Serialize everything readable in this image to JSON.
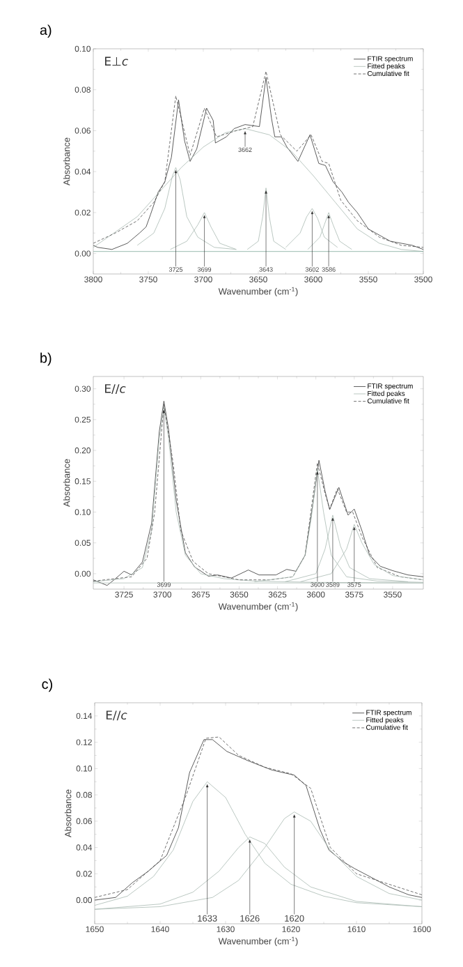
{
  "chart_data": [
    {
      "type": "line",
      "title": "a)",
      "xlabel": "Wavenumber (cm$^{-1}$)",
      "ylabel": "Absorbance",
      "marker": "none",
      "legend": "top right",
      "xlim": [
        3800,
        3500
      ],
      "ylim": [
        -0.01,
        0.1
      ],
      "xticks": [
        3800,
        3750,
        3700,
        3650,
        3600,
        3550,
        3500
      ],
      "yticks": [
        {
          "value": 0,
          "label": "0.00"
        },
        {
          "value": 0.02,
          "label": "0.02"
        },
        {
          "value": 0.04,
          "label": "0.04"
        },
        {
          "value": 0.06,
          "label": "0.06"
        },
        {
          "value": 0.08,
          "label": "0.08"
        },
        {
          "value": 0.1,
          "label": "0.10"
        }
      ],
      "annotations": [
        "E⊥*c*",
        {
          "text": "3725",
          "x": 3725,
          "y": 0.042
        },
        {
          "text": "3699",
          "x": 3699,
          "y": 0.02
        },
        {
          "text": "3662",
          "x": 3662,
          "y": 0.061
        },
        {
          "text": "3643",
          "x": 3643,
          "y": 0.032
        },
        {
          "text": "3602",
          "x": 3601,
          "y": 0.022
        },
        {
          "text": "3586",
          "x": 3586,
          "y": 0.02
        }
      ],
      "series": [
        {
          "name": "FTIR spectrum",
          "color": "#333333",
          "line_style": "solid",
          "x": [
            3800,
            3796,
            3783,
            3769,
            3758,
            3752,
            3748,
            3741,
            3735,
            3729,
            3722.5,
            3717,
            3712,
            3706,
            3697,
            3691,
            3689,
            3679,
            3672,
            3662,
            3649,
            3643,
            3638,
            3635,
            3629,
            3624,
            3614,
            3603,
            3595,
            3589,
            3582,
            3574,
            3568,
            3560,
            3550,
            3530,
            3510,
            3500
          ],
          "values": [
            0.004,
            0.003,
            0.002,
            0.005,
            0.01,
            0.013,
            0.019,
            0.03,
            0.035,
            0.047,
            0.075,
            0.055,
            0.045,
            0.051,
            0.071,
            0.065,
            0.054,
            0.057,
            0.061,
            0.063,
            0.062,
            0.086,
            0.066,
            0.057,
            0.057,
            0.052,
            0.045,
            0.058,
            0.044,
            0.043,
            0.035,
            0.03,
            0.025,
            0.02,
            0.012,
            0.006,
            0.004,
            0.002
          ]
        },
        {
          "name": "Fitted peaks",
          "color": "#a9bab2",
          "line_style": "solid",
          "x": [
            3800,
            3760,
            3740,
            3720,
            3700,
            3680,
            3662,
            3640,
            3620,
            3600,
            3580,
            3560,
            3540,
            3520,
            3500
          ],
          "values": [
            0.003,
            0.018,
            0.03,
            0.042,
            0.052,
            0.059,
            0.061,
            0.058,
            0.05,
            0.038,
            0.025,
            0.012,
            0.005,
            0.002,
            0.001
          ]
        },
        {
          "name": "Cumulative fit",
          "color": "#4d4d4d",
          "line_style": "dashed",
          "x": [
            3800,
            3780,
            3760,
            3745,
            3735,
            3725,
            3712,
            3699,
            3688,
            3670,
            3655,
            3643,
            3630,
            3615,
            3602,
            3592,
            3586,
            3575,
            3560,
            3540,
            3520,
            3500
          ],
          "values": [
            0.005,
            0.01,
            0.016,
            0.025,
            0.035,
            0.077,
            0.048,
            0.071,
            0.057,
            0.06,
            0.062,
            0.089,
            0.058,
            0.05,
            0.058,
            0.045,
            0.044,
            0.026,
            0.016,
            0.008,
            0.004,
            0.003
          ]
        },
        {
          "color": "#a9bab2",
          "line_style": "solid",
          "x": [
            3760,
            3745,
            3735,
            3728,
            3725,
            3721,
            3715,
            3705,
            3690,
            3670
          ],
          "values": [
            0.004,
            0.01,
            0.022,
            0.038,
            0.042,
            0.036,
            0.018,
            0.008,
            0.003,
            0.002
          ]
        },
        {
          "color": "#a9bab2",
          "line_style": "solid",
          "x": [
            3730,
            3715,
            3705,
            3699,
            3693,
            3685,
            3670
          ],
          "values": [
            0.002,
            0.006,
            0.014,
            0.02,
            0.013,
            0.005,
            0.002
          ]
        },
        {
          "color": "#a9bab2",
          "line_style": "solid",
          "x": [
            3660,
            3650,
            3646,
            3643,
            3640,
            3636,
            3625
          ],
          "values": [
            0.002,
            0.006,
            0.018,
            0.032,
            0.018,
            0.006,
            0.002
          ]
        },
        {
          "color": "#a9bab2",
          "line_style": "solid",
          "x": [
            3625,
            3612,
            3606,
            3601,
            3596,
            3590,
            3578
          ],
          "values": [
            0.003,
            0.01,
            0.018,
            0.022,
            0.017,
            0.008,
            0.003
          ]
        },
        {
          "color": "#a9bab2",
          "line_style": "solid",
          "x": [
            3605,
            3594,
            3590,
            3586,
            3582,
            3576,
            3565
          ],
          "values": [
            0.002,
            0.008,
            0.014,
            0.02,
            0.014,
            0.006,
            0.002
          ]
        },
        {
          "color": "#7fa89a",
          "line_style": "solid",
          "x": [
            3800,
            3500
          ],
          "values": [
            0.001,
            0.001
          ]
        }
      ]
    },
    {
      "type": "line",
      "title": "b)",
      "xlabel": "Wavenumber (cm$^{-1}$)",
      "ylabel": "Absorbance",
      "marker": "none",
      "legend": "top right",
      "xlim": [
        3745,
        3530
      ],
      "ylim": [
        -0.025,
        0.32
      ],
      "xticks": [
        3725,
        3700,
        3675,
        3650,
        3625,
        3600,
        3575,
        3550
      ],
      "yticks": [
        {
          "value": 0,
          "label": "0.00"
        },
        {
          "value": 0.05,
          "label": "0.05"
        },
        {
          "value": 0.1,
          "label": "0.10"
        },
        {
          "value": 0.15,
          "label": "0.15"
        },
        {
          "value": 0.2,
          "label": "0.20"
        },
        {
          "value": 0.25,
          "label": "0.25"
        },
        {
          "value": 0.3,
          "label": "0.30"
        }
      ],
      "annotations": [
        "E//*c*",
        {
          "text": "3699",
          "x": 3699,
          "y": 0.27
        },
        {
          "text": "3600",
          "x": 3599,
          "y": 0.17
        },
        {
          "text": "3589",
          "x": 3589,
          "y": 0.095
        },
        {
          "text": "3575",
          "x": 3575,
          "y": 0.08
        }
      ],
      "series": [
        {
          "name": "FTIR spectrum",
          "color": "#333333",
          "line_style": "solid",
          "x": [
            3745,
            3736,
            3731,
            3725,
            3720,
            3713,
            3707,
            3702,
            3699,
            3696,
            3691,
            3685,
            3679,
            3670,
            3664,
            3655,
            3644,
            3637,
            3626,
            3619,
            3613,
            3607,
            3602,
            3598,
            3594,
            3591,
            3585,
            3579,
            3575,
            3570,
            3565,
            3558,
            3550,
            3540,
            3530
          ],
          "values": [
            -0.01,
            -0.019,
            -0.009,
            0.004,
            -0.002,
            0.019,
            0.082,
            0.231,
            0.28,
            0.235,
            0.119,
            0.034,
            0.011,
            -0.004,
            -0.002,
            -0.007,
            0.006,
            -0.002,
            -0.002,
            0.007,
            0.004,
            0.03,
            0.112,
            0.184,
            0.134,
            0.104,
            0.14,
            0.095,
            0.105,
            0.07,
            0.03,
            0.012,
            0.005,
            -0.002,
            -0.005
          ]
        },
        {
          "name": "Fitted peaks",
          "color": "#a9bab2",
          "line_style": "solid",
          "x": [
            3745,
            3725,
            3713,
            3707,
            3702,
            3699,
            3696,
            3691,
            3685,
            3675,
            3660,
            3640,
            3600,
            3530
          ],
          "values": [
            -0.013,
            -0.008,
            0.01,
            0.07,
            0.22,
            0.27,
            0.22,
            0.1,
            0.03,
            0,
            -0.008,
            -0.012,
            -0.014,
            -0.015
          ]
        },
        {
          "name": "Cumulative fit",
          "color": "#4d4d4d",
          "line_style": "dashed",
          "x": [
            3745,
            3720,
            3710,
            3705,
            3699,
            3693,
            3688,
            3680,
            3670,
            3650,
            3630,
            3615,
            3607,
            3599,
            3594,
            3591,
            3586,
            3580,
            3576,
            3570,
            3560,
            3545,
            3530
          ],
          "values": [
            -0.012,
            -0.005,
            0.025,
            0.1,
            0.275,
            0.18,
            0.07,
            0.02,
            0,
            -0.01,
            -0.01,
            -0.005,
            0.03,
            0.18,
            0.13,
            0.105,
            0.138,
            0.1,
            0.1,
            0.06,
            0.01,
            -0.005,
            -0.01
          ]
        },
        {
          "color": "#a9bab2",
          "line_style": "solid",
          "x": [
            3640,
            3615,
            3607,
            3603,
            3599,
            3595,
            3590,
            3580,
            3560,
            3530
          ],
          "values": [
            -0.013,
            -0.005,
            0.03,
            0.09,
            0.17,
            0.1,
            0.03,
            -0.005,
            -0.012,
            -0.014
          ]
        },
        {
          "color": "#a9bab2",
          "line_style": "solid",
          "x": [
            3620,
            3600,
            3594,
            3589,
            3584,
            3578,
            3565,
            3540
          ],
          "values": [
            -0.013,
            0,
            0.04,
            0.095,
            0.045,
            0.01,
            -0.008,
            -0.013
          ]
        },
        {
          "color": "#a9bab2",
          "line_style": "solid",
          "x": [
            3610,
            3590,
            3580,
            3575,
            3570,
            3562,
            3550,
            3530
          ],
          "values": [
            -0.013,
            0,
            0.04,
            0.08,
            0.05,
            0.015,
            -0.003,
            -0.01
          ]
        },
        {
          "color": "#a9bab2",
          "line_style": "solid",
          "x": [
            3745,
            3530
          ],
          "values": [
            -0.015,
            -0.015
          ]
        }
      ]
    },
    {
      "type": "line",
      "title": "c)",
      "xlabel": "Wavenumber (cm$^{-1}$)",
      "ylabel": "Absorbance",
      "marker": "none",
      "legend": "top right",
      "xlim": [
        1650,
        1600
      ],
      "ylim": [
        -0.018,
        0.15
      ],
      "xticks": [
        1650,
        1640,
        1630,
        1620,
        1610,
        1600
      ],
      "yticks": [
        {
          "value": 0,
          "label": "0.00"
        },
        {
          "value": 0.02,
          "label": "0.02"
        },
        {
          "value": 0.04,
          "label": "0.04"
        },
        {
          "value": 0.06,
          "label": "0.06"
        },
        {
          "value": 0.08,
          "label": "0.08"
        },
        {
          "value": 0.1,
          "label": "0.10"
        },
        {
          "value": 0.12,
          "label": "0.12"
        },
        {
          "value": 0.14,
          "label": "0.14"
        }
      ],
      "annotations": [
        "E//*c*",
        {
          "text": "1633",
          "x": 1632.8,
          "y": 0.09
        },
        {
          "text": "1626",
          "x": 1626.3,
          "y": 0.048
        },
        {
          "text": "1620",
          "x": 1619.5,
          "y": 0.067
        }
      ],
      "series": [
        {
          "name": "FTIR spectrum",
          "color": "#333333",
          "line_style": "solid",
          "x": [
            1650,
            1646.8,
            1644.3,
            1641.8,
            1639,
            1637.2,
            1635.5,
            1633.3,
            1632,
            1629.8,
            1626.6,
            1623,
            1621.3,
            1619.5,
            1617.7,
            1615.6,
            1614.2,
            1612,
            1610.3,
            1608,
            1605,
            1602,
            1600
          ],
          "values": [
            0,
            0.002,
            0.013,
            0.022,
            0.034,
            0.055,
            0.097,
            0.122,
            0.122,
            0.113,
            0.106,
            0.099,
            0.097,
            0.095,
            0.087,
            0.054,
            0.038,
            0.029,
            0.024,
            0.018,
            0.01,
            0.004,
            0.002
          ]
        },
        {
          "name": "Fitted peaks",
          "color": "#a9bab2",
          "line_style": "solid",
          "x": [
            1650,
            1645,
            1641,
            1638,
            1635,
            1632.8,
            1630,
            1627,
            1624,
            1620,
            1615,
            1610,
            1600
          ],
          "values": [
            -0.004,
            0.003,
            0.018,
            0.038,
            0.075,
            0.09,
            0.078,
            0.05,
            0.028,
            0.012,
            0.003,
            -0.002,
            -0.005
          ]
        },
        {
          "name": "Cumulative fit",
          "color": "#4d4d4d",
          "line_style": "dashed",
          "x": [
            1650,
            1645,
            1640,
            1636,
            1633,
            1631,
            1628,
            1624,
            1620,
            1617,
            1614,
            1610,
            1605,
            1600
          ],
          "values": [
            0.002,
            0.008,
            0.03,
            0.08,
            0.123,
            0.124,
            0.11,
            0.101,
            0.096,
            0.085,
            0.04,
            0.02,
            0.012,
            0.004
          ]
        },
        {
          "color": "#a9bab2",
          "line_style": "solid",
          "x": [
            1650,
            1640,
            1635,
            1631,
            1628,
            1626.3,
            1624,
            1621,
            1617,
            1610,
            1600
          ],
          "values": [
            -0.007,
            -0.003,
            0.006,
            0.022,
            0.04,
            0.048,
            0.043,
            0.025,
            0.01,
            -0.001,
            -0.005
          ]
        },
        {
          "color": "#a9bab2",
          "line_style": "solid",
          "x": [
            1650,
            1640,
            1632,
            1628,
            1624,
            1621,
            1619.5,
            1617,
            1614,
            1610,
            1605,
            1600
          ],
          "values": [
            -0.007,
            -0.005,
            0.002,
            0.015,
            0.04,
            0.062,
            0.067,
            0.06,
            0.038,
            0.018,
            0.005,
            0
          ]
        }
      ]
    }
  ]
}
